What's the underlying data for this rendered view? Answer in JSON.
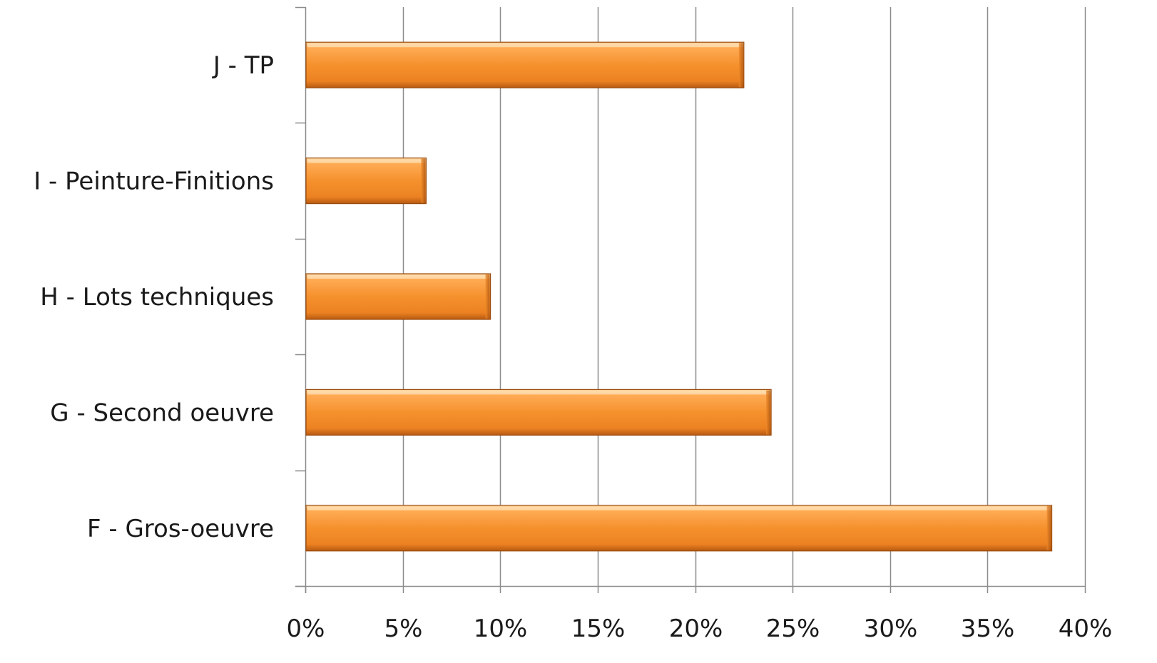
{
  "chart_data": {
    "type": "bar",
    "orientation": "horizontal",
    "categories": [
      "F - Gros-oeuvre",
      "G - Second oeuvre",
      "H - Lots techniques",
      "I - Peinture-Finitions",
      "J - TP"
    ],
    "values": [
      38.3,
      23.9,
      9.5,
      6.2,
      22.5
    ],
    "xlim": [
      0,
      40
    ],
    "xticks": [
      0,
      5,
      10,
      15,
      20,
      25,
      30,
      35,
      40
    ],
    "xtick_labels": [
      "0%",
      "5%",
      "10%",
      "15%",
      "20%",
      "25%",
      "30%",
      "35%",
      "40%"
    ],
    "title": "",
    "xlabel": "",
    "ylabel": "",
    "grid": "vertical",
    "legend": "none",
    "colors": {
      "bar": "#f5912d",
      "bar_light": "#ffc27a",
      "bar_dark": "#b85a12",
      "grid": "#8c8c8c",
      "axis": "#8c8c8c",
      "text": "#1a1a1a"
    }
  }
}
